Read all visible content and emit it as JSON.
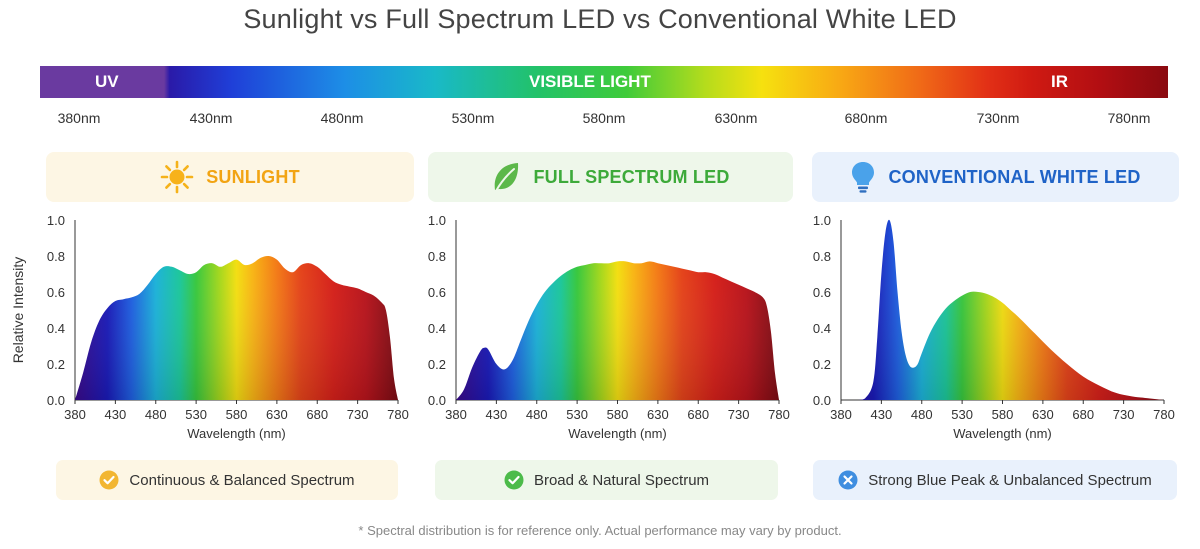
{
  "title": "Sunlight vs Full Spectrum LED vs Conventional White LED",
  "spectrum_bar": {
    "uv_label": "UV",
    "visible_label": "VISIBLE LIGHT",
    "ir_label": "IR",
    "ticks": [
      "380nm",
      "430nm",
      "480nm",
      "530nm",
      "580nm",
      "630nm",
      "680nm",
      "730nm",
      "780nm"
    ]
  },
  "y_axis_label": "Relative Intensity",
  "cards": [
    {
      "title": "SUNLIGHT",
      "icon": "sun-icon",
      "color": "#f2a413",
      "bg": "#fdf6e4"
    },
    {
      "title": "FULL SPECTRUM LED",
      "icon": "leaf-icon",
      "color": "#3daa3a",
      "bg": "#eef7ea"
    },
    {
      "title": "CONVENTIONAL WHITE LED",
      "icon": "bulb-icon",
      "color": "#1f63c7",
      "bg": "#e9f1fc"
    }
  ],
  "pills": [
    {
      "text": "Continuous & Balanced Spectrum",
      "icon": "check-icon",
      "color": "#f2b632",
      "bg": "#fdf6e4"
    },
    {
      "text": "Broad & Natural Spectrum",
      "icon": "check-icon",
      "color": "#4cbb4a",
      "bg": "#eef7ea"
    },
    {
      "text": "Strong Blue Peak & Unbalanced Spectrum",
      "icon": "x-icon",
      "color": "#3f8ee0",
      "bg": "#e9f1fc"
    }
  ],
  "chart_data": [
    {
      "type": "area",
      "xlabel": "Wavelength (nm)",
      "ylabel": "Relative Intensity",
      "xlim": [
        380,
        780
      ],
      "ylim": [
        0,
        1.0
      ],
      "x_ticks": [
        380,
        430,
        480,
        530,
        580,
        630,
        680,
        730,
        780
      ],
      "y_ticks": [
        "0.0",
        "0.2",
        "0.4",
        "0.6",
        "0.8",
        "1.0"
      ],
      "series": [
        {
          "x": [
            380,
            390,
            400,
            410,
            420,
            430,
            440,
            450,
            460,
            470,
            480,
            490,
            500,
            510,
            520,
            530,
            540,
            550,
            560,
            570,
            580,
            590,
            600,
            610,
            620,
            630,
            640,
            650,
            660,
            670,
            680,
            690,
            700,
            710,
            720,
            730,
            740,
            750,
            760,
            765,
            770,
            775,
            780
          ],
          "values": [
            0.0,
            0.15,
            0.32,
            0.44,
            0.51,
            0.55,
            0.56,
            0.57,
            0.59,
            0.64,
            0.7,
            0.74,
            0.74,
            0.72,
            0.7,
            0.71,
            0.75,
            0.76,
            0.74,
            0.76,
            0.78,
            0.75,
            0.76,
            0.79,
            0.8,
            0.78,
            0.73,
            0.71,
            0.75,
            0.76,
            0.74,
            0.7,
            0.66,
            0.64,
            0.63,
            0.62,
            0.6,
            0.58,
            0.54,
            0.5,
            0.35,
            0.12,
            0.0
          ]
        }
      ]
    },
    {
      "type": "area",
      "xlabel": "Wavelength (nm)",
      "ylabel": "Relative Intensity",
      "xlim": [
        380,
        780
      ],
      "ylim": [
        0,
        1.0
      ],
      "x_ticks": [
        380,
        430,
        480,
        530,
        580,
        630,
        680,
        730,
        780
      ],
      "y_ticks": [
        "0.0",
        "0.2",
        "0.4",
        "0.6",
        "0.8",
        "1.0"
      ],
      "series": [
        {
          "x": [
            380,
            390,
            400,
            410,
            415,
            420,
            430,
            440,
            450,
            460,
            470,
            480,
            490,
            500,
            510,
            520,
            530,
            540,
            550,
            560,
            570,
            580,
            590,
            600,
            610,
            620,
            630,
            640,
            650,
            660,
            670,
            680,
            690,
            700,
            710,
            720,
            730,
            740,
            750,
            760,
            765,
            770,
            775,
            780
          ],
          "values": [
            0.0,
            0.06,
            0.18,
            0.27,
            0.29,
            0.28,
            0.2,
            0.17,
            0.22,
            0.33,
            0.44,
            0.53,
            0.6,
            0.65,
            0.69,
            0.72,
            0.74,
            0.75,
            0.76,
            0.76,
            0.76,
            0.77,
            0.77,
            0.76,
            0.76,
            0.77,
            0.76,
            0.75,
            0.74,
            0.73,
            0.72,
            0.71,
            0.71,
            0.7,
            0.68,
            0.66,
            0.64,
            0.62,
            0.6,
            0.57,
            0.52,
            0.38,
            0.15,
            0.0
          ]
        }
      ]
    },
    {
      "type": "area",
      "xlabel": "Wavelength (nm)",
      "ylabel": "Relative Intensity",
      "xlim": [
        380,
        780
      ],
      "ylim": [
        0,
        1.0
      ],
      "x_ticks": [
        380,
        430,
        480,
        530,
        580,
        630,
        680,
        730,
        780
      ],
      "y_ticks": [
        "0.0",
        "0.2",
        "0.4",
        "0.6",
        "0.8",
        "1.0"
      ],
      "series": [
        {
          "x": [
            380,
            400,
            410,
            420,
            425,
            430,
            435,
            440,
            445,
            450,
            455,
            460,
            465,
            470,
            475,
            480,
            490,
            500,
            510,
            520,
            530,
            540,
            550,
            560,
            570,
            580,
            590,
            600,
            620,
            640,
            660,
            680,
            700,
            720,
            740,
            760,
            780
          ],
          "values": [
            0.0,
            0.0,
            0.01,
            0.1,
            0.35,
            0.7,
            0.93,
            1.0,
            0.88,
            0.6,
            0.38,
            0.25,
            0.19,
            0.18,
            0.2,
            0.26,
            0.37,
            0.45,
            0.51,
            0.55,
            0.58,
            0.6,
            0.6,
            0.59,
            0.57,
            0.54,
            0.5,
            0.46,
            0.37,
            0.28,
            0.2,
            0.13,
            0.08,
            0.04,
            0.02,
            0.01,
            0.0
          ]
        }
      ]
    }
  ],
  "footnote": "* Spectral distribution is for reference only. Actual performance may vary by product."
}
